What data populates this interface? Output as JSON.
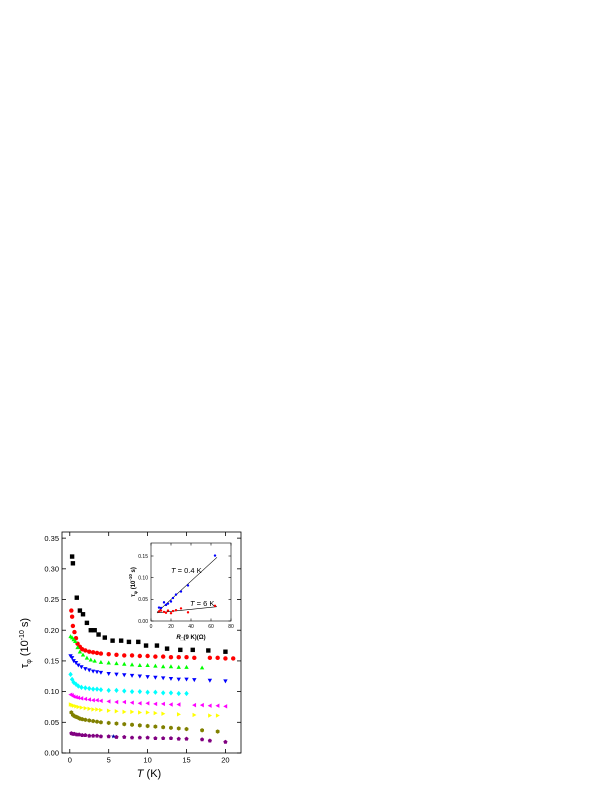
{
  "chart_data": [
    {
      "type": "scatter",
      "title": "",
      "xlabel": "T (K)",
      "ylabel": "τφ (10⁻¹⁰ s)",
      "xlim": [
        -1,
        22
      ],
      "ylim": [
        0,
        0.36
      ],
      "xticks": [
        0,
        5,
        10,
        15,
        20
      ],
      "yticks": [
        0.0,
        0.05,
        0.1,
        0.15,
        0.2,
        0.25,
        0.3,
        0.35
      ],
      "ytick_labels": [
        "0.00",
        "0.05",
        "0.10",
        "0.15",
        "0.20",
        "0.25",
        "0.30",
        "0.35"
      ],
      "grid": false,
      "series": [
        {
          "marker": "square",
          "color": "#000000",
          "x": [
            0.3,
            0.4,
            0.9,
            1.3,
            1.7,
            2.2,
            2.7,
            3.2,
            3.7,
            4.5,
            5.5,
            6.6,
            7.6,
            8.8,
            9.8,
            11.2,
            12.5,
            14.2,
            15.8,
            17.8,
            20
          ],
          "y": [
            0.32,
            0.309,
            0.253,
            0.232,
            0.226,
            0.212,
            0.2,
            0.2,
            0.193,
            0.188,
            0.183,
            0.183,
            0.181,
            0.181,
            0.175,
            0.175,
            0.17,
            0.168,
            0.168,
            0.167,
            0.165
          ]
        },
        {
          "marker": "circle",
          "color": "#ff0000",
          "x": [
            0.2,
            0.3,
            0.4,
            0.6,
            0.8,
            1.0,
            1.3,
            1.6,
            2.0,
            2.5,
            3.0,
            3.5,
            4.0,
            5.0,
            6.0,
            7.0,
            8.0,
            9.0,
            10.0,
            11.0,
            12.0,
            13.0,
            14.0,
            15.0,
            16.0,
            18.0,
            19.0,
            20.0,
            21.0
          ],
          "y": [
            0.232,
            0.222,
            0.207,
            0.197,
            0.187,
            0.178,
            0.173,
            0.169,
            0.167,
            0.165,
            0.164,
            0.163,
            0.162,
            0.161,
            0.16,
            0.159,
            0.159,
            0.158,
            0.158,
            0.157,
            0.157,
            0.156,
            0.156,
            0.156,
            0.155,
            0.155,
            0.155,
            0.154,
            0.154
          ]
        },
        {
          "marker": "triangle-up",
          "color": "#00ff00",
          "x": [
            0.1,
            0.3,
            0.5,
            0.7,
            1.0,
            1.3,
            1.7,
            2.2,
            2.7,
            3.2,
            4.0,
            5.0,
            6.0,
            7.0,
            8.0,
            9.0,
            10.0,
            11.0,
            12.0,
            13.0,
            14.0,
            15.0,
            17.0
          ],
          "y": [
            0.19,
            0.188,
            0.185,
            0.182,
            0.172,
            0.165,
            0.16,
            0.155,
            0.152,
            0.15,
            0.148,
            0.147,
            0.146,
            0.145,
            0.144,
            0.143,
            0.143,
            0.142,
            0.141,
            0.141,
            0.14,
            0.14,
            0.139
          ]
        },
        {
          "marker": "triangle-down",
          "color": "#0000ff",
          "x": [
            0.1,
            0.3,
            0.5,
            0.8,
            1.1,
            1.5,
            2.0,
            2.5,
            3.0,
            3.5,
            4.0,
            5.0,
            6.0,
            7.0,
            8.0,
            9.0,
            10.0,
            11.0,
            12.0,
            13.0,
            14.0,
            15.0,
            16.0,
            18.0,
            20.0
          ],
          "y": [
            0.158,
            0.155,
            0.15,
            0.147,
            0.143,
            0.14,
            0.137,
            0.135,
            0.133,
            0.132,
            0.131,
            0.129,
            0.128,
            0.127,
            0.126,
            0.125,
            0.124,
            0.123,
            0.122,
            0.121,
            0.12,
            0.12,
            0.119,
            0.118,
            0.117
          ]
        },
        {
          "marker": "diamond",
          "color": "#00ffff",
          "x": [
            0.1,
            0.3,
            0.5,
            0.8,
            1.1,
            1.5,
            2.0,
            2.5,
            3.0,
            3.5,
            4.0,
            5.0,
            6.0,
            7.0,
            8.0,
            9.0,
            10.0,
            11.0,
            12.0,
            13.0,
            14.0,
            15.0
          ],
          "y": [
            0.128,
            0.12,
            0.115,
            0.112,
            0.109,
            0.107,
            0.106,
            0.105,
            0.104,
            0.104,
            0.103,
            0.102,
            0.102,
            0.101,
            0.1,
            0.1,
            0.099,
            0.099,
            0.098,
            0.098,
            0.097,
            0.097
          ]
        },
        {
          "marker": "triangle-left",
          "color": "#ff00ff",
          "x": [
            0.1,
            0.3,
            0.5,
            0.8,
            1.1,
            1.5,
            2.0,
            2.5,
            3.0,
            3.5,
            4.0,
            5.0,
            6.0,
            7.0,
            8.0,
            9.0,
            10.0,
            11.0,
            12.0,
            13.0,
            14.0,
            16.0,
            17.0,
            18.0,
            19.0,
            20.0
          ],
          "y": [
            0.095,
            0.094,
            0.092,
            0.091,
            0.09,
            0.089,
            0.088,
            0.087,
            0.086,
            0.086,
            0.085,
            0.084,
            0.083,
            0.083,
            0.082,
            0.081,
            0.081,
            0.08,
            0.08,
            0.079,
            0.079,
            0.078,
            0.078,
            0.077,
            0.077,
            0.076
          ]
        },
        {
          "marker": "triangle-right",
          "color": "#ffff00",
          "x": [
            0.1,
            0.3,
            0.5,
            0.8,
            1.1,
            1.5,
            2.0,
            2.5,
            3.0,
            3.5,
            4.0,
            5.0,
            6.0,
            7.0,
            8.0,
            9.0,
            10.0,
            11.0,
            12.0,
            14.0,
            16.0,
            18.0,
            19.0
          ],
          "y": [
            0.079,
            0.078,
            0.077,
            0.076,
            0.075,
            0.074,
            0.073,
            0.072,
            0.071,
            0.071,
            0.07,
            0.069,
            0.068,
            0.067,
            0.067,
            0.066,
            0.066,
            0.065,
            0.064,
            0.063,
            0.062,
            0.061,
            0.061
          ]
        },
        {
          "marker": "hexagon",
          "color": "#808000",
          "x": [
            0.2,
            0.4,
            0.6,
            0.8,
            1.0,
            1.3,
            1.6,
            2.0,
            2.5,
            3.0,
            3.5,
            4.0,
            5.0,
            6.0,
            7.0,
            8.0,
            9.0,
            10.0,
            11.0,
            12.0,
            13.0,
            14.0,
            15.0,
            17.0,
            19.0
          ],
          "y": [
            0.066,
            0.062,
            0.06,
            0.059,
            0.058,
            0.056,
            0.055,
            0.054,
            0.053,
            0.052,
            0.051,
            0.05,
            0.049,
            0.048,
            0.047,
            0.046,
            0.045,
            0.044,
            0.043,
            0.042,
            0.041,
            0.04,
            0.039,
            0.037,
            0.035
          ]
        },
        {
          "marker": "pentagon",
          "color": "#800080",
          "x": [
            0.2,
            0.4,
            0.6,
            0.9,
            1.2,
            1.6,
            2.0,
            2.5,
            3.0,
            3.5,
            4.0,
            5.0,
            6.0,
            7.0,
            8.0,
            9.0,
            10.0,
            11.0,
            12.0,
            13.0,
            14.0,
            15.0,
            17.0,
            18.0,
            20.0
          ],
          "y": [
            0.032,
            0.031,
            0.031,
            0.03,
            0.03,
            0.029,
            0.029,
            0.028,
            0.028,
            0.028,
            0.027,
            0.027,
            0.026,
            0.026,
            0.025,
            0.025,
            0.025,
            0.024,
            0.024,
            0.024,
            0.023,
            0.023,
            0.022,
            0.02,
            0.018
          ]
        }
      ],
      "extra_marks": [
        {
          "marker": "star",
          "color": "#0000aa",
          "x": 5.6,
          "y": 0.027
        }
      ]
    },
    {
      "type": "scatter",
      "title": "",
      "xlabel": "R□(9 K)(Ω)",
      "ylabel": "τφ (10⁻¹⁰ s)",
      "xlim": [
        0,
        80
      ],
      "ylim": [
        0,
        0.18
      ],
      "xticks": [
        0,
        20,
        40,
        60,
        80
      ],
      "yticks": [
        0.0,
        0.05,
        0.1,
        0.15
      ],
      "ytick_labels": [
        "0.00",
        "0.05",
        "0.10",
        "0.15"
      ],
      "annotations": [
        "T = 0.4 K",
        "T = 6 K"
      ],
      "series": [
        {
          "marker": "point",
          "color": "#0000ff",
          "x": [
            8,
            10,
            13,
            15,
            17,
            20,
            22,
            25,
            30,
            37,
            64
          ],
          "y": [
            0.031,
            0.03,
            0.043,
            0.037,
            0.04,
            0.045,
            0.053,
            0.061,
            0.068,
            0.082,
            0.151
          ],
          "fit_line": {
            "x": [
              6,
              66
            ],
            "y": [
              0.02,
              0.147
            ]
          }
        },
        {
          "marker": "point",
          "color": "#ff0000",
          "x": [
            8,
            10,
            13,
            15,
            17,
            20,
            22,
            25,
            30,
            37,
            64
          ],
          "y": [
            0.022,
            0.024,
            0.021,
            0.019,
            0.024,
            0.018,
            0.023,
            0.025,
            0.029,
            0.02,
            0.035
          ],
          "fit_line": {
            "x": [
              6,
              66
            ],
            "y": [
              0.019,
              0.033
            ]
          }
        }
      ]
    }
  ]
}
